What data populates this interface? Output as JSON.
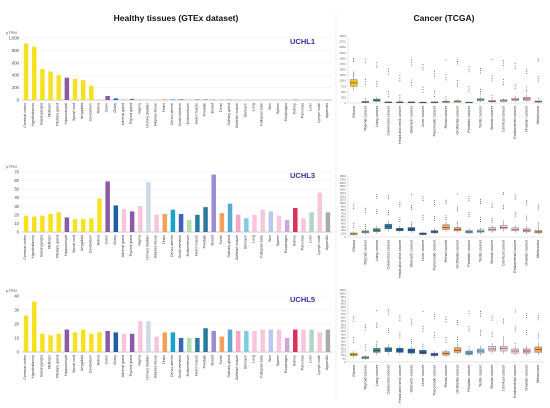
{
  "headers": {
    "left": "Healthy tissues (GTEx dataset)",
    "right": "Cancer (TCGA)"
  },
  "colors": {
    "gene_label": "#3a2ea8",
    "tissue_palette": [
      "#f5e11d",
      "#f5e11d",
      "#f5e11d",
      "#f5e11d",
      "#f5e11d",
      "#8a5aa6",
      "#f5e11d",
      "#f5e11d",
      "#f5e11d",
      "#f5e11d",
      "#8a5aa6",
      "#1d5fa6",
      "#f7c6dc",
      "#8a5aa6",
      "#f7c6dc",
      "#cfd8e6",
      "#f7c6dc",
      "#f4a05a",
      "#1aa3c8",
      "#3a66b3",
      "#b7ddb1",
      "#2a7aa0",
      "#2a7aa0",
      "#9b8bd1",
      "#f4a05a",
      "#58a8d6",
      "#f7a6c5",
      "#7dc9e8",
      "#f7c6dc",
      "#f7c6dc",
      "#b9c8ec",
      "#f7c6dc",
      "#d0a6d8",
      "#d8315b",
      "#f7c6dc",
      "#b2d5c8",
      "#f7c6dc",
      "#aaaaaa"
    ],
    "cancer_palette": [
      "#f5c21d",
      "#88aa88",
      "#3d8f8a",
      "#2a7aa8",
      "#1a5fa0",
      "#1a5fa0",
      "#1a5fa0",
      "#3a66b3",
      "#f4a05a",
      "#f4a05a",
      "#58a8d6",
      "#7dc9e8",
      "#f7c6dc",
      "#f7c6dc",
      "#f7c6dc",
      "#f7a6c5",
      "#f4a05a"
    ]
  },
  "tissues": [
    "Cerebral cortex",
    "Hypothalamus",
    "Basal ganglia",
    "Midbrain",
    "Pituitary gland",
    "Hippocampal",
    "Spinal cord",
    "Amygdala",
    "Cerebellum",
    "Retina",
    "Colon",
    "Ovary",
    "Adrenal gland",
    "Thyroid gland",
    "Vagina",
    "Urinary bladder",
    "Adipose tissue",
    "Testis",
    "Cervix uterine",
    "Small intestine",
    "Endometrium",
    "Heart muscle",
    "Prostate",
    "Breast",
    "Tonsil",
    "Salivary gland",
    "Skeletal muscle",
    "Stomach",
    "Lung",
    "Fallopian tube",
    "Skin",
    "Spleen",
    "Esophagus",
    "Kidney",
    "Pancreas",
    "Liver",
    "Lymph node",
    "Appendix"
  ],
  "cancers": [
    "Glioma",
    "Thyroid cancer",
    "Lung cancer",
    "Colorectal cancer",
    "Head and neck cancer",
    "Stomach cancer",
    "Liver cancer",
    "Pancreatic cancer",
    "Renal cancer",
    "Urothelial cancer",
    "Prostate cancer",
    "Testis cancer",
    "Breast cancer",
    "Cervical cancer",
    "Endometrial cancer",
    "Ovarian cancer",
    "Melanoma"
  ],
  "chart_data": [
    {
      "type": "bar",
      "gene": "UCHL1",
      "unit": "pTPM",
      "ylim": [
        0,
        1000
      ],
      "yticks": [
        0,
        200,
        400,
        600,
        800,
        1000
      ],
      "ytick_labels": [
        "0",
        "200",
        "400",
        "600",
        "800",
        "1,000"
      ],
      "values": [
        910,
        860,
        500,
        460,
        400,
        360,
        340,
        320,
        230,
        5,
        65,
        25,
        22,
        18,
        15,
        14,
        12,
        12,
        10,
        10,
        9,
        8,
        8,
        8,
        7,
        7,
        6,
        6,
        5,
        5,
        5,
        4,
        4,
        4,
        3,
        3,
        3,
        2
      ]
    },
    {
      "type": "bar",
      "gene": "UCHL3",
      "unit": "pTPM",
      "ylim": [
        0,
        70
      ],
      "yticks": [
        0,
        10,
        20,
        30,
        40,
        50,
        60,
        70
      ],
      "ytick_labels": [
        "0",
        "10",
        "20",
        "30",
        "40",
        "50",
        "60",
        "70"
      ],
      "values": [
        19,
        18,
        19,
        21,
        23,
        17,
        15,
        15,
        16,
        39,
        59,
        31,
        27,
        24,
        30,
        58,
        20,
        21,
        26,
        21,
        14,
        20,
        29,
        67,
        22,
        33,
        20,
        16,
        20,
        26,
        24,
        19,
        14,
        28,
        16,
        23,
        46,
        23
      ]
    },
    {
      "type": "bar",
      "gene": "UCHL5",
      "unit": "pTPM",
      "ylim": [
        0,
        40
      ],
      "yticks": [
        0,
        10,
        20,
        30,
        40
      ],
      "ytick_labels": [
        "0",
        "10",
        "20",
        "30",
        "40"
      ],
      "values": [
        26,
        36,
        13,
        12,
        13,
        16,
        14,
        16,
        13,
        14,
        15,
        14,
        13,
        13,
        22,
        22,
        11,
        14,
        14,
        10,
        10,
        10,
        17,
        15,
        11,
        16,
        15,
        15,
        15,
        16,
        16,
        16,
        10,
        16,
        16,
        16,
        14,
        16
      ]
    },
    {
      "type": "box",
      "group": "UCHL1",
      "yticks": [
        "0",
        "25.0",
        "50.0",
        "75.0",
        "100.0",
        "125.0",
        "150.0",
        "175.0",
        "200.0",
        "225.0",
        "250.0",
        "275.0",
        "300.0"
      ],
      "ylim": [
        0,
        300
      ],
      "boxes": [
        [
          55,
          75,
          90,
          105,
          125
        ],
        [
          0,
          2,
          4,
          8,
          15
        ],
        [
          3,
          8,
          12,
          18,
          28
        ],
        [
          1,
          2,
          3,
          5,
          8
        ],
        [
          1,
          2,
          3,
          5,
          8
        ],
        [
          1,
          2,
          3,
          5,
          8
        ],
        [
          1,
          2,
          3,
          4,
          6
        ],
        [
          1,
          2,
          3,
          5,
          7
        ],
        [
          1,
          3,
          5,
          8,
          12
        ],
        [
          2,
          4,
          6,
          10,
          16
        ],
        [
          1,
          2,
          3,
          4,
          6
        ],
        [
          4,
          10,
          14,
          20,
          28
        ],
        [
          2,
          5,
          8,
          12,
          18
        ],
        [
          3,
          6,
          10,
          15,
          22
        ],
        [
          5,
          10,
          16,
          22,
          32
        ],
        [
          6,
          12,
          18,
          26,
          38
        ],
        [
          2,
          4,
          6,
          9,
          14
        ]
      ]
    },
    {
      "type": "box",
      "group": "UCHL3",
      "yticks": [
        "0",
        "10.0",
        "20.0",
        "30.0",
        "40.0",
        "50.0",
        "60.0",
        "70.0",
        "80.0",
        "90.0",
        "100.0",
        "110.0",
        "120.0",
        "130.0",
        "140.0",
        "150.0",
        "160.0",
        "170.0",
        "180.0"
      ],
      "ylim": [
        0,
        180
      ],
      "boxes": [
        [
          4,
          7,
          9,
          12,
          16
        ],
        [
          8,
          12,
          15,
          18,
          24
        ],
        [
          10,
          16,
          20,
          25,
          34
        ],
        [
          16,
          24,
          30,
          38,
          48
        ],
        [
          12,
          18,
          22,
          26,
          34
        ],
        [
          12,
          18,
          22,
          28,
          36
        ],
        [
          4,
          7,
          9,
          12,
          16
        ],
        [
          8,
          12,
          15,
          19,
          26
        ],
        [
          14,
          22,
          28,
          36,
          46
        ],
        [
          12,
          18,
          22,
          28,
          36
        ],
        [
          8,
          12,
          15,
          19,
          26
        ],
        [
          9,
          14,
          17,
          21,
          28
        ],
        [
          12,
          18,
          23,
          28,
          36
        ],
        [
          16,
          24,
          28,
          34,
          44
        ],
        [
          12,
          18,
          22,
          27,
          34
        ],
        [
          10,
          15,
          19,
          24,
          32
        ],
        [
          8,
          12,
          15,
          19,
          26
        ]
      ]
    },
    {
      "type": "box",
      "group": "UCHL5",
      "yticks": [
        "0",
        "5.0",
        "10.0",
        "15.0",
        "20.0",
        "25.0",
        "30.0",
        "35.0",
        "40.0",
        "45.0",
        "50.0",
        "55.0",
        "60.0",
        "65.0",
        "70.0",
        "75.0",
        "80.0",
        "85.0",
        "90.0",
        "95.0",
        "100.0",
        "105.0"
      ],
      "ylim": [
        0,
        105
      ],
      "boxes": [
        [
          6,
          9,
          11,
          13,
          16
        ],
        [
          3,
          5,
          6,
          8,
          10
        ],
        [
          10,
          14,
          17,
          20,
          25
        ],
        [
          10,
          15,
          18,
          21,
          26
        ],
        [
          10,
          14,
          17,
          20,
          24
        ],
        [
          10,
          13,
          16,
          19,
          23
        ],
        [
          9,
          12,
          14,
          17,
          21
        ],
        [
          6,
          9,
          11,
          13,
          16
        ],
        [
          7,
          10,
          12,
          15,
          19
        ],
        [
          10,
          14,
          17,
          21,
          26
        ],
        [
          8,
          11,
          13,
          16,
          20
        ],
        [
          9,
          13,
          16,
          19,
          24
        ],
        [
          12,
          16,
          19,
          23,
          28
        ],
        [
          12,
          16,
          20,
          23,
          29
        ],
        [
          10,
          13,
          16,
          19,
          24
        ],
        [
          9,
          13,
          16,
          19,
          24
        ],
        [
          10,
          14,
          18,
          22,
          28
        ]
      ]
    }
  ]
}
